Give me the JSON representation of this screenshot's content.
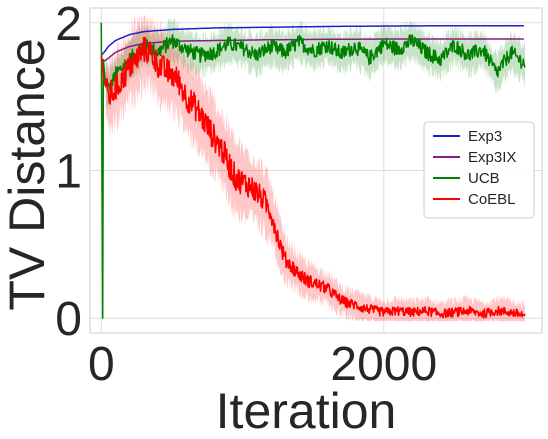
{
  "chart_data": {
    "type": "line",
    "title": "",
    "xlabel": "Iteration",
    "ylabel": "TV Distance",
    "xlim": [
      -80,
      3120
    ],
    "ylim": [
      -0.1,
      2.1
    ],
    "x_ticks": [
      0,
      2000
    ],
    "x_tick_labels": [
      "0",
      "2000"
    ],
    "y_ticks": [
      0,
      1,
      2
    ],
    "y_tick_labels": [
      "0",
      "1",
      "2"
    ],
    "grid": true,
    "legend_placement": "center-right",
    "series": [
      {
        "name": "Exp3",
        "color": "#1f1fd0",
        "x": [
          0,
          20,
          50,
          100,
          200,
          300,
          500,
          800,
          1200,
          1600,
          2000,
          2500,
          3000
        ],
        "y": [
          1.78,
          1.8,
          1.84,
          1.88,
          1.92,
          1.94,
          1.955,
          1.965,
          1.97,
          1.975,
          1.978,
          1.98,
          1.98
        ]
      },
      {
        "name": "Exp3IX",
        "color": "#8b1a8b",
        "x": [
          0,
          20,
          50,
          100,
          200,
          300,
          500,
          800,
          1200,
          1600,
          2000,
          2500,
          3000
        ],
        "y": [
          1.76,
          1.74,
          1.76,
          1.8,
          1.84,
          1.86,
          1.875,
          1.88,
          1.885,
          1.888,
          1.89,
          1.89,
          1.89
        ]
      },
      {
        "name": "UCB",
        "color": "#008000",
        "x": [
          0,
          5,
          10,
          15,
          30,
          60,
          100,
          150,
          200,
          300,
          400,
          500,
          600,
          700,
          800,
          900,
          1000,
          1100,
          1200,
          1300,
          1400,
          1500,
          1600,
          1700,
          1800,
          1900,
          2000,
          2100,
          2200,
          2300,
          2400,
          2500,
          2600,
          2700,
          2800,
          2900,
          3000
        ],
        "y": [
          2.0,
          1.0,
          0.0,
          1.75,
          1.6,
          1.55,
          1.65,
          1.7,
          1.75,
          1.85,
          1.8,
          1.88,
          1.82,
          1.78,
          1.8,
          1.86,
          1.83,
          1.78,
          1.84,
          1.8,
          1.87,
          1.81,
          1.85,
          1.79,
          1.84,
          1.76,
          1.86,
          1.82,
          1.88,
          1.8,
          1.75,
          1.85,
          1.78,
          1.82,
          1.66,
          1.8,
          1.72
        ]
      },
      {
        "name": "CoEBL",
        "color": "#ff0000",
        "x": [
          0,
          20,
          50,
          100,
          150,
          200,
          250,
          300,
          350,
          400,
          450,
          500,
          550,
          600,
          650,
          700,
          750,
          800,
          850,
          900,
          950,
          1000,
          1050,
          1100,
          1150,
          1200,
          1250,
          1300,
          1350,
          1400,
          1450,
          1500,
          1550,
          1600,
          1650,
          1700,
          1750,
          1800,
          1850,
          1900,
          1950,
          2000,
          2100,
          2200,
          2300,
          2400,
          2500,
          2600,
          2700,
          2800,
          2900,
          3000
        ],
        "y": [
          1.78,
          1.6,
          1.5,
          1.55,
          1.62,
          1.7,
          1.75,
          1.82,
          1.8,
          1.72,
          1.68,
          1.65,
          1.6,
          1.5,
          1.45,
          1.38,
          1.3,
          1.22,
          1.15,
          1.05,
          0.95,
          0.92,
          0.9,
          0.85,
          0.8,
          0.72,
          0.55,
          0.4,
          0.35,
          0.3,
          0.26,
          0.24,
          0.22,
          0.2,
          0.16,
          0.12,
          0.1,
          0.09,
          0.07,
          0.06,
          0.05,
          0.04,
          0.05,
          0.04,
          0.05,
          0.03,
          0.04,
          0.05,
          0.03,
          0.05,
          0.04,
          0.02
        ]
      }
    ]
  }
}
